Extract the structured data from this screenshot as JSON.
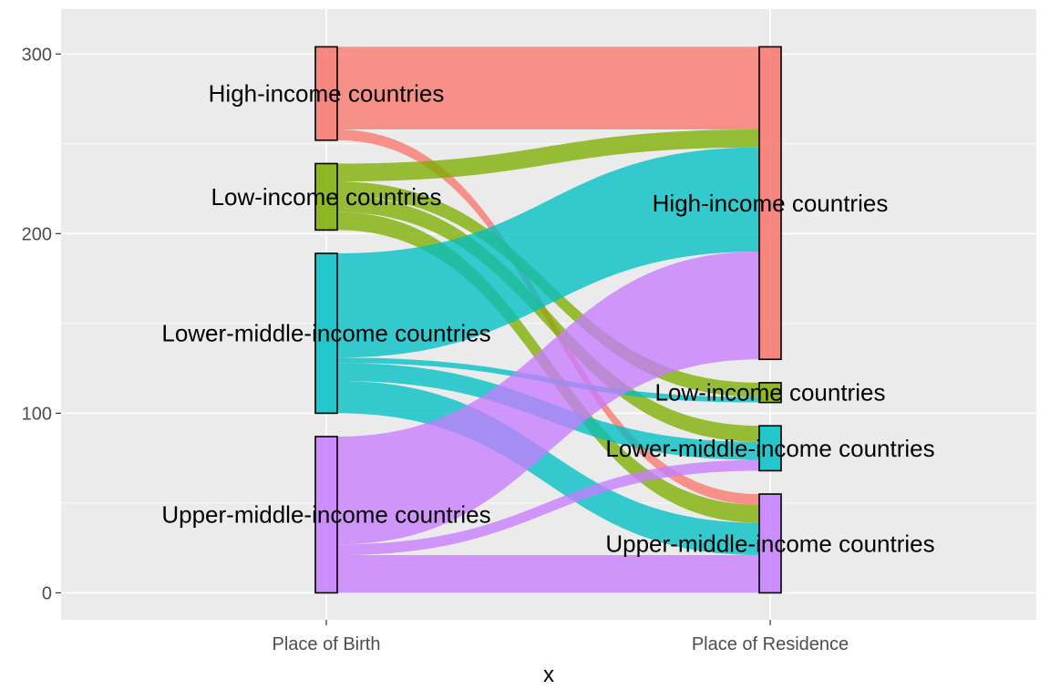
{
  "chart_data": {
    "type": "alluvial",
    "xlabel": "x",
    "ylabel": "",
    "ylim": [
      -15,
      325
    ],
    "y_ticks": [
      0,
      100,
      200,
      300
    ],
    "axes": [
      "Place of Birth",
      "Place of Residence"
    ],
    "categories": [
      "High-income countries",
      "Low-income countries",
      "Lower-middle-income countries",
      "Upper-middle-income countries"
    ],
    "colors": {
      "High-income countries": "#f8766d",
      "Low-income countries": "#7cae00",
      "Lower-middle-income countries": "#00bfc4",
      "Upper-middle-income countries": "#c77cff"
    },
    "grid": true,
    "background": "#ebebeb",
    "flows": [
      {
        "from": "High-income countries",
        "to": "High-income countries",
        "value": 46
      },
      {
        "from": "High-income countries",
        "to": "Upper-middle-income countries",
        "value": 6
      },
      {
        "from": "Low-income countries",
        "to": "High-income countries",
        "value": 10
      },
      {
        "from": "Low-income countries",
        "to": "Low-income countries",
        "value": 8
      },
      {
        "from": "Low-income countries",
        "to": "Lower-middle-income countries",
        "value": 9
      },
      {
        "from": "Low-income countries",
        "to": "Upper-middle-income countries",
        "value": 10
      },
      {
        "from": "Lower-middle-income countries",
        "to": "High-income countries",
        "value": 58
      },
      {
        "from": "Lower-middle-income countries",
        "to": "Low-income countries",
        "value": 3
      },
      {
        "from": "Lower-middle-income countries",
        "to": "Lower-middle-income countries",
        "value": 10
      },
      {
        "from": "Lower-middle-income countries",
        "to": "Upper-middle-income countries",
        "value": 18
      },
      {
        "from": "Upper-middle-income countries",
        "to": "High-income countries",
        "value": 60
      },
      {
        "from": "Upper-middle-income countries",
        "to": "Lower-middle-income countries",
        "value": 6
      },
      {
        "from": "Upper-middle-income countries",
        "to": "Upper-middle-income countries",
        "value": 21
      }
    ]
  }
}
